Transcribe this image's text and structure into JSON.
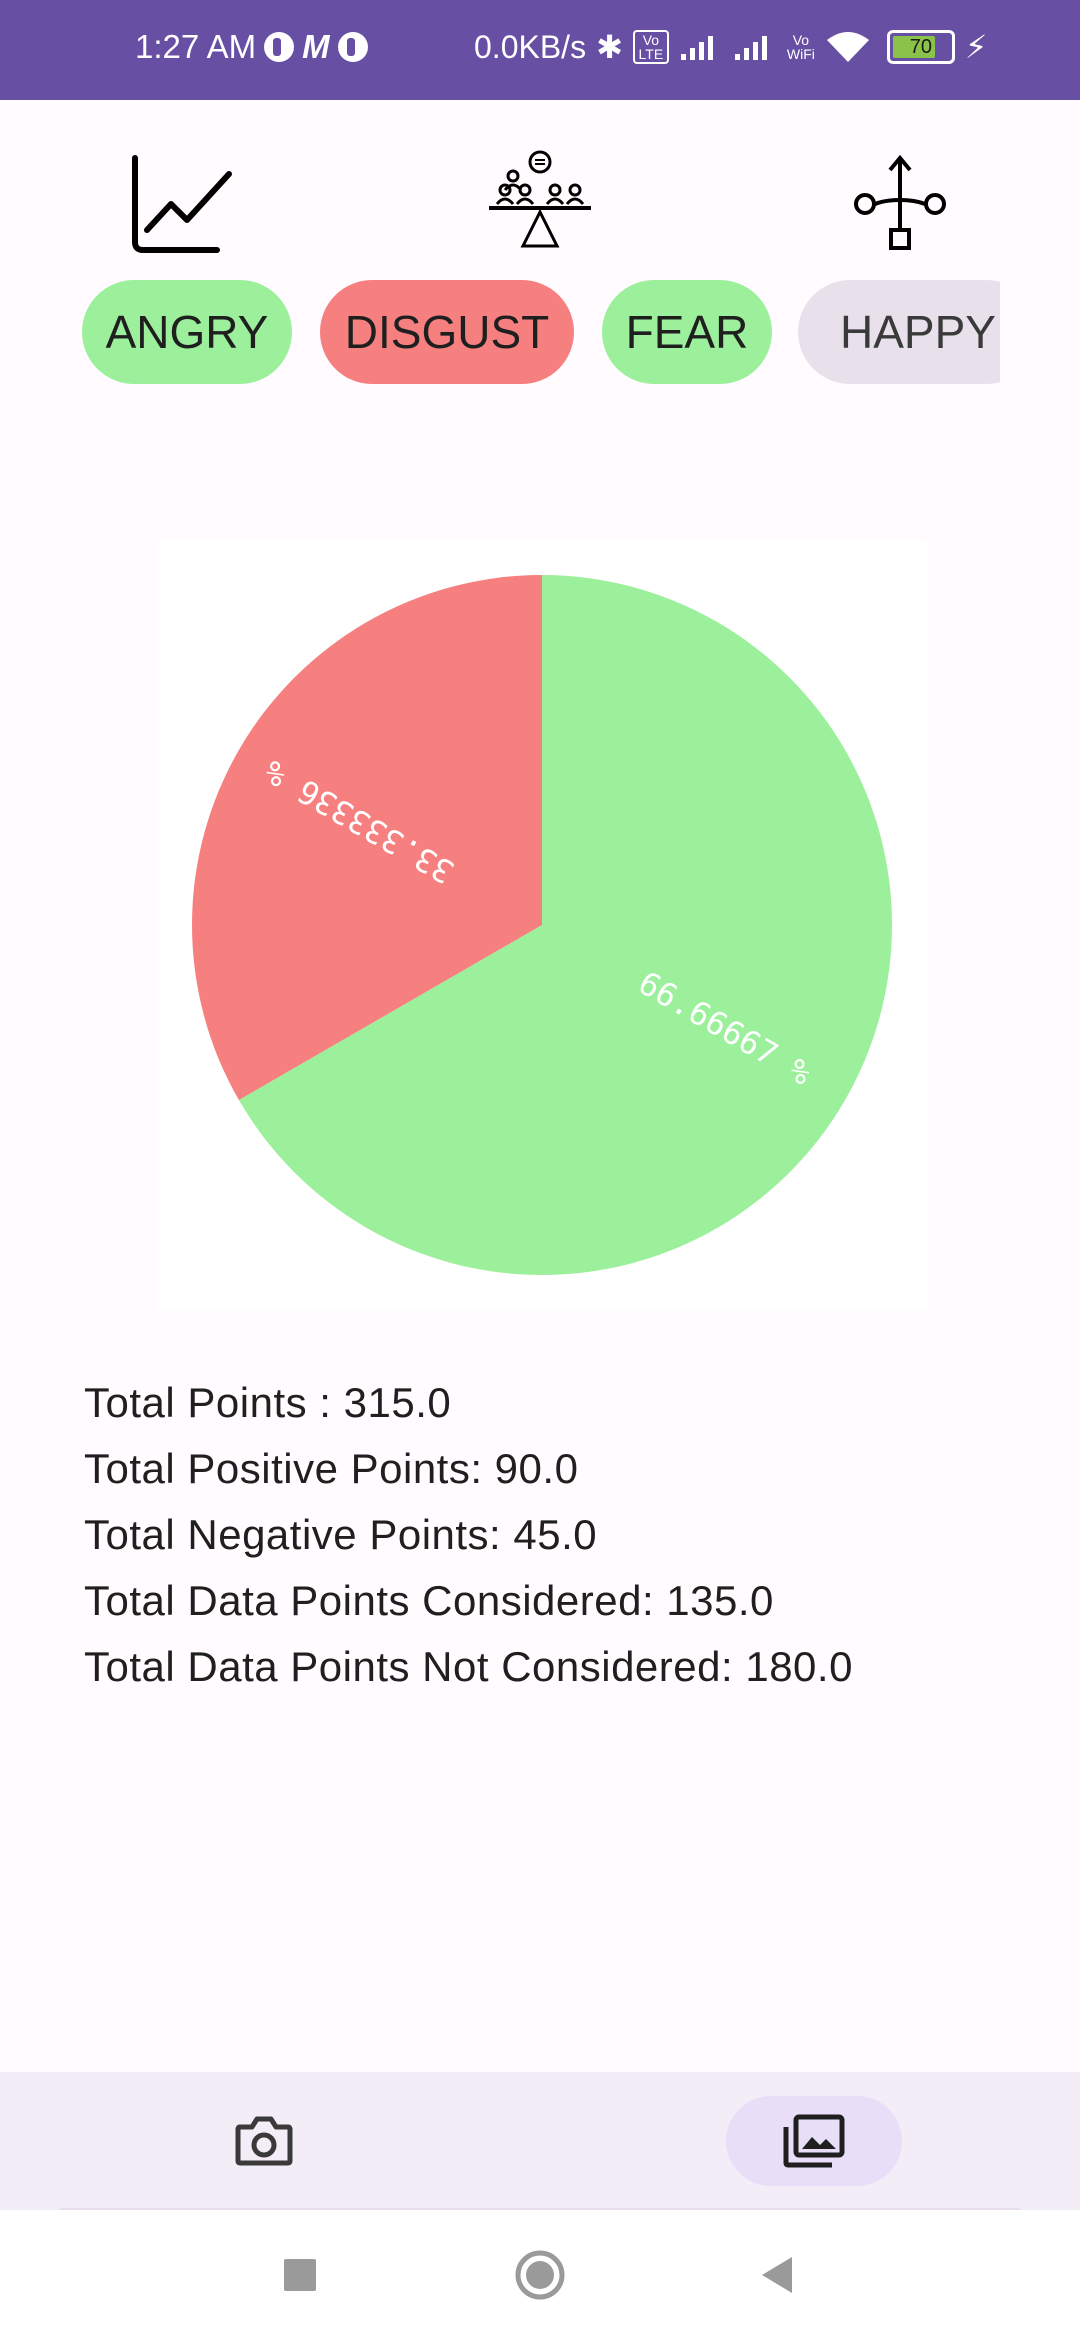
{
  "status_bar": {
    "time": "1:27 AM",
    "network_speed": "0.0KB/s",
    "vo_lte": "Vo LTE",
    "vo_wifi_top": "Vo",
    "vo_wifi_bottom": "WiFi",
    "battery": "70",
    "icons": [
      "notification-icon",
      "m-app-icon",
      "notification-icon",
      "bluetooth-icon",
      "volte-icon",
      "signal-icon",
      "signal-icon",
      "vowifi-icon",
      "wifi-icon",
      "battery-icon",
      "charging-icon"
    ]
  },
  "toolbar": {
    "icons": [
      "line-chart-icon",
      "balance-scale-group-icon",
      "flow-split-icon"
    ]
  },
  "chips": [
    {
      "label": "ANGRY",
      "color": "#9cf09c"
    },
    {
      "label": "DISGUST",
      "color": "#f5807f"
    },
    {
      "label": "FEAR",
      "color": "#9cf09c"
    },
    {
      "label": "HAPPY",
      "color": "#e8e1ec"
    }
  ],
  "chart_data": {
    "type": "pie",
    "slices": [
      {
        "value": 66.66667,
        "label": "66.66667 %",
        "color": "#9cf09c"
      },
      {
        "value": 33.333336,
        "label": "33.333336 %",
        "color": "#f5807f"
      }
    ],
    "start_angle_deg": 0,
    "direction": "clockwise"
  },
  "stats": {
    "total_points": "Total Points : 315.0",
    "total_positive": "Total Positive Points: 90.0",
    "total_negative": "Total Negative Points: 45.0",
    "considered": "Total Data Points Considered: 135.0",
    "not_considered": "Total Data Points Not Considered: 180.0"
  },
  "bottom_nav": {
    "items": [
      {
        "icon": "camera-icon",
        "active": false
      },
      {
        "icon": "gallery-icon",
        "active": true
      }
    ]
  },
  "system_nav": [
    "recents-square-icon",
    "home-circle-icon",
    "back-triangle-icon"
  ]
}
